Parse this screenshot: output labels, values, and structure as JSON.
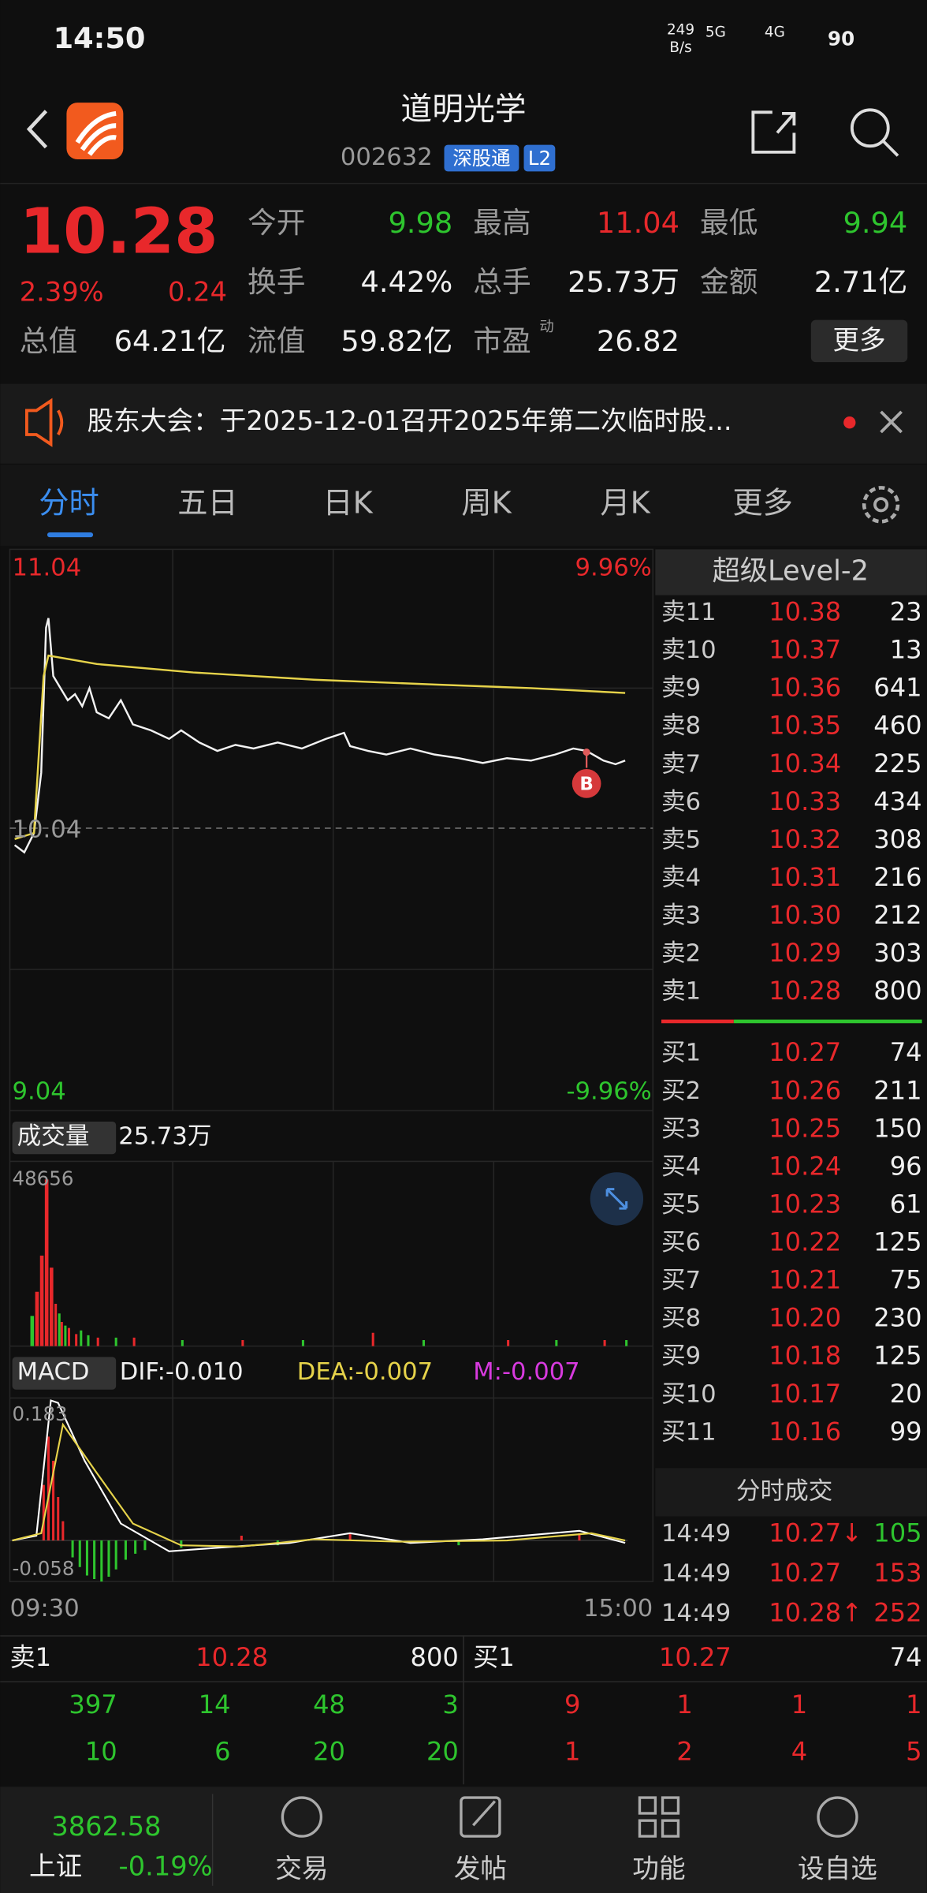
{
  "status": {
    "time": "14:50",
    "speed": "249",
    "speed_unit": "B/s",
    "net1": "5G",
    "net2": "4G",
    "battery": "90"
  },
  "header": {
    "title": "道明光学",
    "code": "002632",
    "tag": "深股通",
    "level": "L2"
  },
  "quote": {
    "price": "10.28",
    "change_pct": "2.39%",
    "change": "0.24",
    "fields": [
      [
        {
          "label": "今开",
          "value": "9.98"
        },
        {
          "label": "最高",
          "value": "11.04"
        },
        {
          "label": "最低",
          "value": "9.94"
        }
      ],
      [
        {
          "label": "换手",
          "value": "4.42%"
        },
        {
          "label": "总手",
          "value": "25.73万"
        },
        {
          "label": "金额",
          "value": "2.71亿"
        }
      ],
      [
        {
          "label": "总值",
          "value": "64.21亿"
        },
        {
          "label": "流值",
          "value": "59.82亿"
        },
        {
          "label": "市盈",
          "value": "26.82"
        }
      ]
    ],
    "pe_sup": "动",
    "more": "更多"
  },
  "notice": "股东大会：于2025-12-01召开2025年第二次临时股...",
  "tabs": [
    "分时",
    "五日",
    "日K",
    "周K",
    "月K",
    "更多"
  ],
  "chart": {
    "high": "11.04",
    "high_pct": "9.96%",
    "mid": "10.04",
    "low": "9.04",
    "low_pct": "-9.96%",
    "marker": "B",
    "volume_label": "成交量",
    "volume_total": "25.73万",
    "volume_max": "48656",
    "macd_label": "MACD",
    "dif": "DIF:-0.010",
    "dea": "DEA:-0.007",
    "m": "M:-0.007",
    "macd_max": "0.183",
    "macd_min": "-0.058",
    "time_start": "09:30",
    "time_end": "15:00"
  },
  "level2": {
    "title": "超级Level-2",
    "asks": [
      [
        "卖11",
        "10.38",
        "23"
      ],
      [
        "卖10",
        "10.37",
        "13"
      ],
      [
        "卖9",
        "10.36",
        "641"
      ],
      [
        "卖8",
        "10.35",
        "460"
      ],
      [
        "卖7",
        "10.34",
        "225"
      ],
      [
        "卖6",
        "10.33",
        "434"
      ],
      [
        "卖5",
        "10.32",
        "308"
      ],
      [
        "卖4",
        "10.31",
        "216"
      ],
      [
        "卖3",
        "10.30",
        "212"
      ],
      [
        "卖2",
        "10.29",
        "303"
      ],
      [
        "卖1",
        "10.28",
        "800"
      ]
    ],
    "bids": [
      [
        "买1",
        "10.27",
        "74"
      ],
      [
        "买2",
        "10.26",
        "211"
      ],
      [
        "买3",
        "10.25",
        "150"
      ],
      [
        "买4",
        "10.24",
        "96"
      ],
      [
        "买5",
        "10.23",
        "61"
      ],
      [
        "买6",
        "10.22",
        "125"
      ],
      [
        "买7",
        "10.21",
        "75"
      ],
      [
        "买8",
        "10.20",
        "230"
      ],
      [
        "买9",
        "10.18",
        "125"
      ],
      [
        "买10",
        "10.17",
        "20"
      ],
      [
        "买11",
        "10.16",
        "99"
      ]
    ],
    "trades_title": "分时成交",
    "trades": [
      [
        "14:49",
        "10.27↓",
        "105"
      ],
      [
        "14:49",
        "10.27",
        "153"
      ],
      [
        "14:49",
        "10.28↑",
        "252"
      ]
    ]
  },
  "book": {
    "sell": {
      "label": "卖1",
      "price": "10.28",
      "volume": "800",
      "rows": [
        [
          "397",
          "14",
          "48",
          "3"
        ],
        [
          "10",
          "6",
          "20",
          "20"
        ]
      ]
    },
    "buy": {
      "label": "买1",
      "price": "10.27",
      "volume": "74",
      "rows": [
        [
          "9",
          "1",
          "1",
          "1"
        ],
        [
          "1",
          "2",
          "4",
          "5"
        ]
      ]
    }
  },
  "nav": {
    "index_value": "3862.58",
    "index_name": "上证",
    "index_change": "-0.19%",
    "items": [
      "交易",
      "发帖",
      "功能",
      "设自选"
    ]
  }
}
